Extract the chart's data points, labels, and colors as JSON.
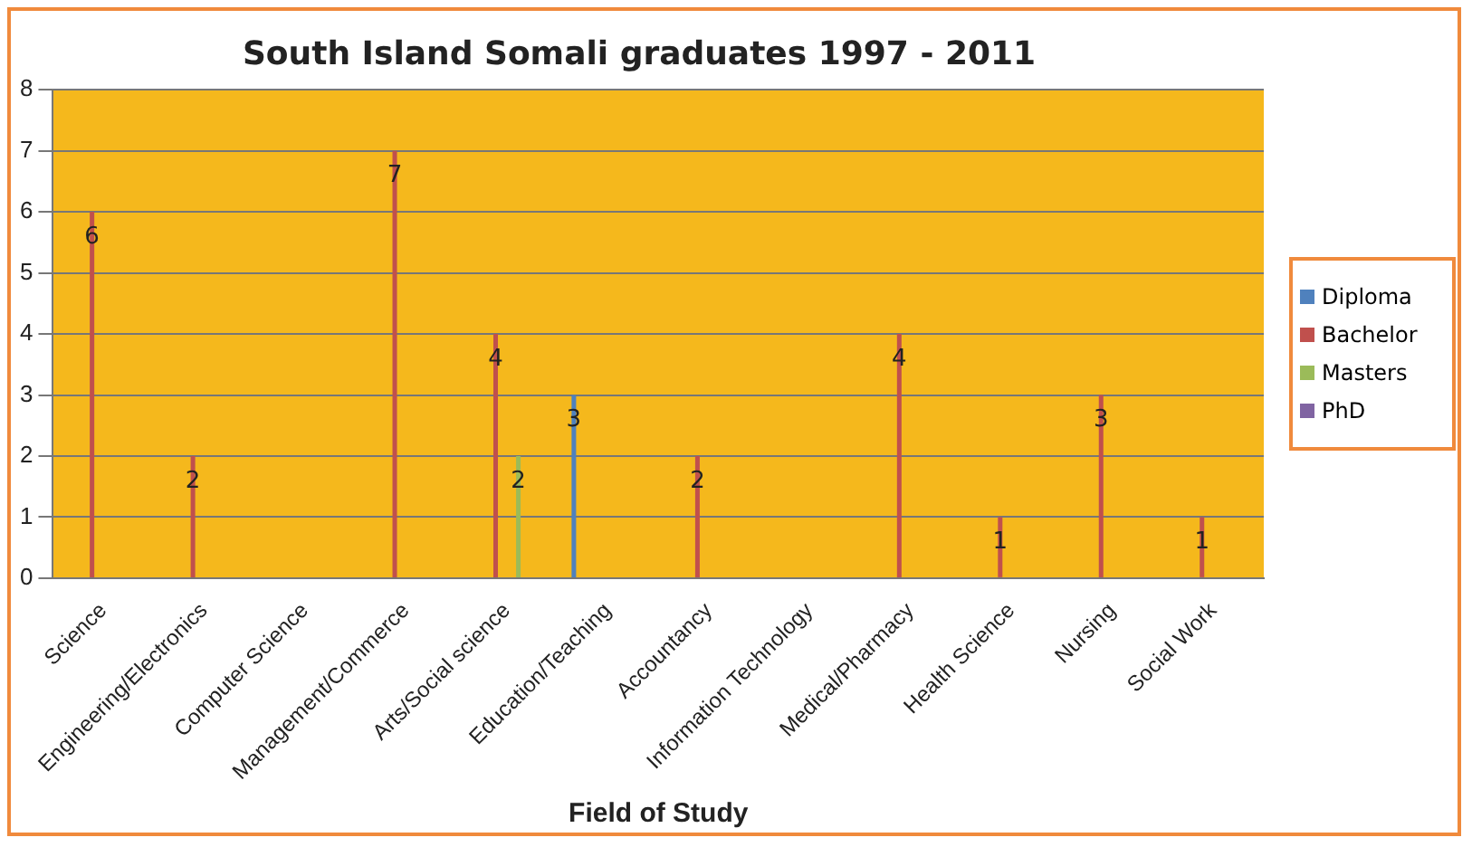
{
  "chart_data": {
    "type": "bar",
    "title": "South Island Somali graduates 1997 - 2011",
    "xlabel": "Field of Study",
    "categories": [
      "Science",
      "Engineering/Electronics",
      "Computer Science",
      "Management/Commerce",
      "Arts/Social science",
      "Education/Teaching",
      "Accountancy",
      "Information Technology",
      "Medical/Pharmacy",
      "Health Science",
      "Nursing",
      "Social Work"
    ],
    "series": [
      {
        "name": "Diploma",
        "color": "#4f81bd",
        "values": [
          null,
          null,
          null,
          null,
          null,
          3,
          null,
          null,
          null,
          null,
          null,
          null
        ]
      },
      {
        "name": "Bachelor",
        "color": "#c0504d",
        "values": [
          6,
          2,
          null,
          7,
          4,
          null,
          2,
          null,
          4,
          1,
          3,
          1
        ]
      },
      {
        "name": "Masters",
        "color": "#9bbb59",
        "values": [
          null,
          null,
          null,
          null,
          2,
          null,
          null,
          null,
          null,
          null,
          null,
          null
        ]
      },
      {
        "name": "PhD",
        "color": "#8064a2",
        "values": [
          null,
          null,
          null,
          null,
          null,
          null,
          null,
          null,
          null,
          null,
          null,
          null
        ]
      }
    ],
    "ylim": [
      0,
      8
    ],
    "yticks": [
      0,
      1,
      2,
      3,
      4,
      5,
      6,
      7,
      8
    ],
    "grid": "y",
    "legend": "right",
    "data_labels": true
  }
}
